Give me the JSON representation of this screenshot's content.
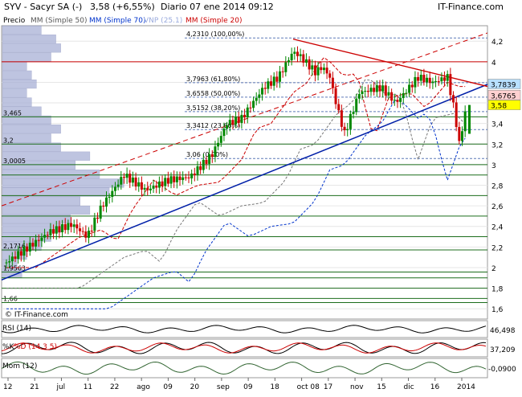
{
  "header": {
    "title": "SYV - Sacyr SA (-)",
    "price_change": "3,58 (+6,55%)",
    "period_date": "Diario  07 ene 2014 09:12",
    "brand": "IT-Finance.com"
  },
  "legend": {
    "precio": "Precio",
    "mm50": "MM (Simple 50)",
    "mm70": "MM (Simple 70)",
    "vnp": "VNP (25.1)",
    "mm20": "MM (Simple 20)"
  },
  "watermark": "© IT-Finance.com",
  "colors": {
    "candle_up": "#008800",
    "candle_down": "#cc0000",
    "mm20": "#cc0000",
    "mm50": "#777777",
    "mm70": "#0033cc",
    "trend_blue": "#001fa8",
    "trend_red": "#cc0000",
    "volume_bars": "#a9b1d6",
    "price_badge": "#ffff00",
    "badge_blue": "#b8e0ff",
    "badge_red": "#ffd0d0"
  },
  "chart_data": {
    "type": "candlestick",
    "title": "SYV - Sacyr SA (-)",
    "ylim": [
      1.5,
      4.35
    ],
    "y_ticks": [
      1.6,
      1.8,
      2.0,
      2.2,
      2.4,
      2.6,
      2.8,
      3.0,
      3.2,
      3.4,
      3.6,
      3.8,
      4.0,
      4.2
    ],
    "y_tick_labels": [
      "1,6",
      "1,8",
      "2",
      "2,2",
      "2,4",
      "2,6",
      "2,8",
      "3",
      "3,2",
      "3,4",
      "3,6",
      "3,8",
      "4",
      "4,2"
    ],
    "x_tick_labels": [
      "12",
      "21",
      "jul",
      "11",
      "22",
      "ago",
      "09",
      "20",
      "sep",
      "09",
      "18",
      "oct 08",
      "17",
      "nov",
      "15",
      "dic",
      "16",
      "2014"
    ],
    "levels": [
      {
        "label": "3,465",
        "value": 3.465
      },
      {
        "label": "3,2",
        "value": 3.2
      },
      {
        "label": "3,0005",
        "value": 3.0005
      },
      {
        "label": "2,1716",
        "value": 2.1716
      },
      {
        "label": "1,9563",
        "value": 1.9563
      },
      {
        "label": "1,66",
        "value": 1.66
      },
      {
        "label": "4,2310 (100,00%)",
        "value": 4.231
      },
      {
        "label": "3,7963 (61,80%)",
        "value": 3.7963
      },
      {
        "label": "3,6558 (50,00%)",
        "value": 3.6558
      },
      {
        "label": "3,5152 (38,20%)",
        "value": 3.5152
      },
      {
        "label": "3,3412 (23,60%)",
        "value": 3.3412
      },
      {
        "label": "3,06 (0,00%)",
        "value": 3.06
      }
    ],
    "badges": [
      {
        "label": "3,7839",
        "value": 3.7839,
        "kind": "blue"
      },
      {
        "label": "3,6765",
        "value": 3.6765,
        "kind": "red"
      },
      {
        "label": "3,58",
        "value": 3.58,
        "kind": "price"
      }
    ],
    "price": 3.58,
    "indicators": [
      {
        "name": "RSI (14)",
        "value": "46,498"
      },
      {
        "name": "%K",
        "name2": "%D (14 3 5)",
        "value": "37,209"
      },
      {
        "name": "Mom (12)",
        "value": "-0,0900"
      }
    ]
  }
}
